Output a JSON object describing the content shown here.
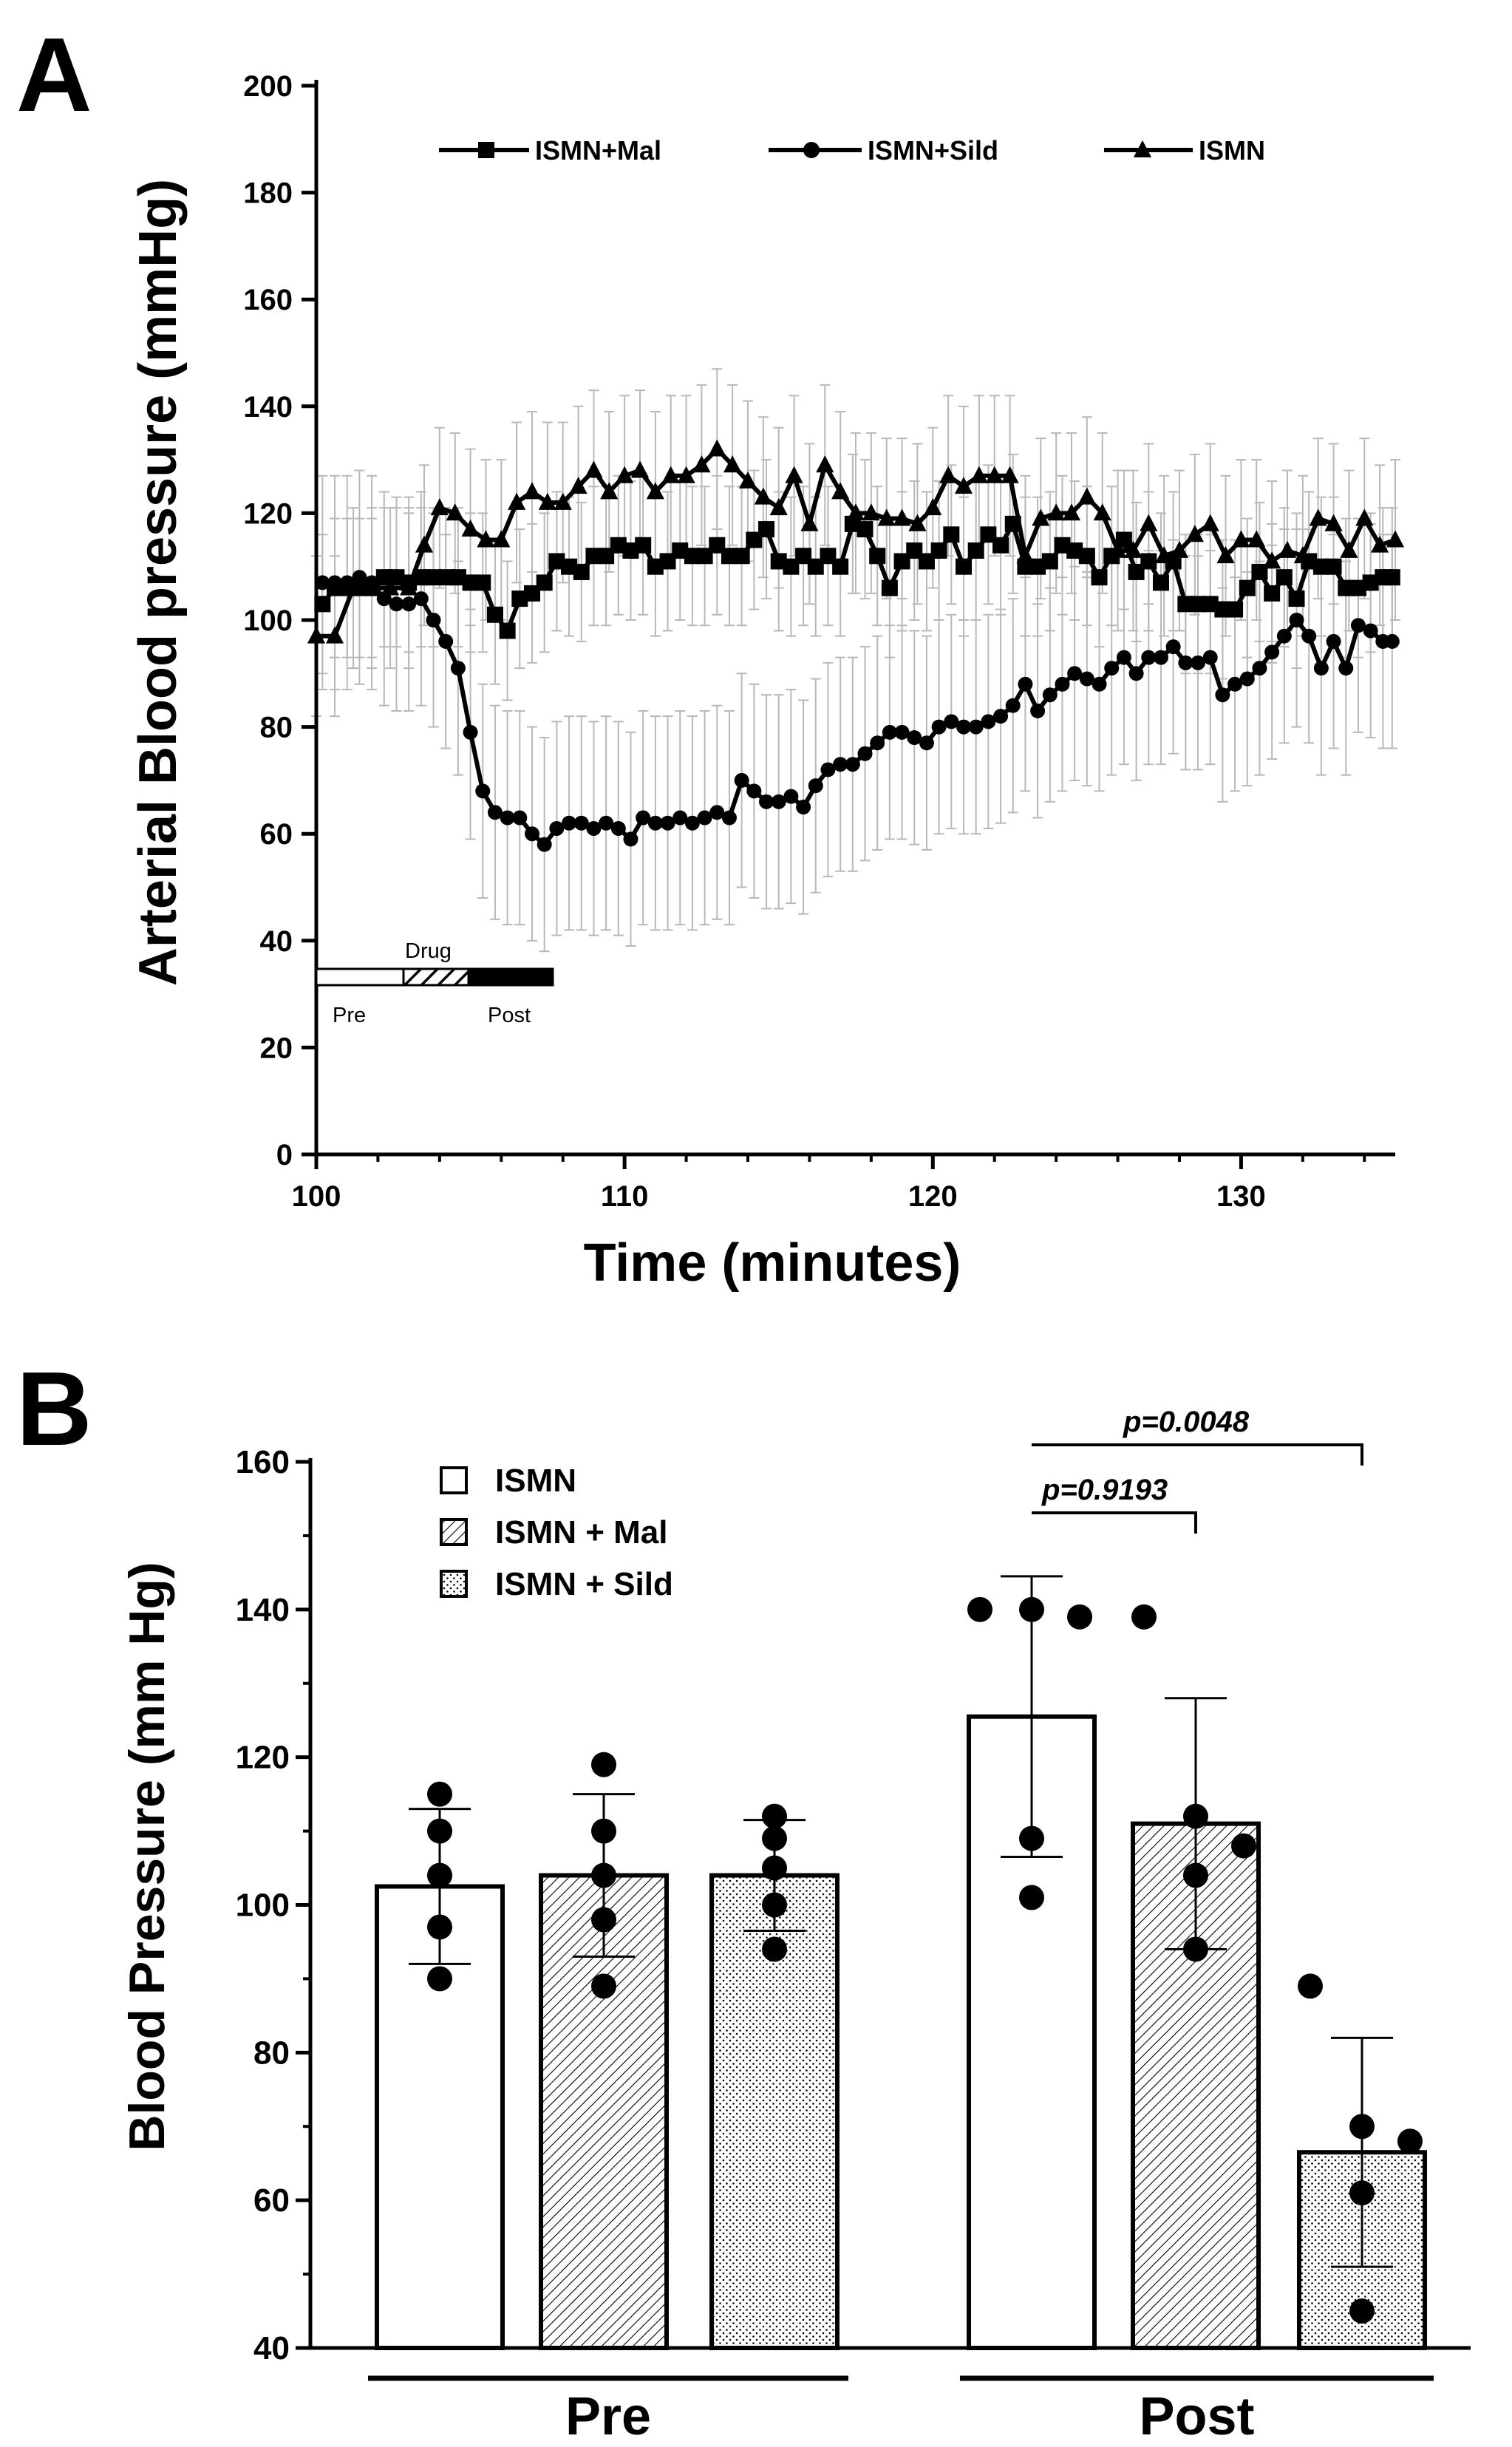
{
  "chart_data": [
    {
      "panel": "A",
      "type": "line",
      "xlabel": "Time (minutes)",
      "ylabel": "Arterial Blood pressure (mmHg)",
      "xlim": [
        100,
        135
      ],
      "ylim": [
        0,
        200
      ],
      "xticks": [
        100,
        110,
        120,
        130
      ],
      "yticks": [
        0,
        20,
        40,
        60,
        80,
        100,
        120,
        140,
        160,
        180,
        200
      ],
      "legend_position": "top",
      "inset": {
        "pre_label": "Pre",
        "drug_label": "Drug",
        "post_label": "Post"
      },
      "series": [
        {
          "name": "ISMN+Mal",
          "marker": "square",
          "x": [
            100.2,
            100.6,
            101,
            101.4,
            101.8,
            102.2,
            102.6,
            103,
            103.4,
            103.8,
            104.2,
            104.6,
            105,
            105.4,
            105.8,
            106.2,
            106.6,
            107,
            107.4,
            107.8,
            108.2,
            108.6,
            109,
            109.4,
            109.8,
            110.2,
            110.6,
            111,
            111.4,
            111.8,
            112.2,
            112.6,
            113,
            113.4,
            113.8,
            114.2,
            114.6,
            115,
            115.4,
            115.8,
            116.2,
            116.6,
            117,
            117.4,
            117.8,
            118.2,
            118.6,
            119,
            119.4,
            119.8,
            120.2,
            120.6,
            121,
            121.4,
            121.8,
            122.2,
            122.6,
            123,
            123.4,
            123.8,
            124.2,
            124.6,
            125,
            125.4,
            125.8,
            126.2,
            126.6,
            127,
            127.4,
            127.8,
            128.2,
            128.6,
            129,
            129.4,
            129.8,
            130.2,
            130.6,
            131,
            131.4,
            131.8,
            132.2,
            132.6,
            133,
            133.4,
            133.8,
            134.2,
            134.6,
            134.9
          ],
          "values": [
            103,
            106,
            106,
            106,
            106,
            108,
            108,
            107,
            108,
            108,
            108,
            108,
            107,
            107,
            101,
            98,
            104,
            105,
            107,
            111,
            110,
            109,
            112,
            112,
            114,
            113,
            114,
            110,
            111,
            113,
            112,
            112,
            114,
            112,
            112,
            115,
            117,
            111,
            110,
            112,
            110,
            112,
            110,
            118,
            117,
            112,
            106,
            111,
            113,
            111,
            113,
            116,
            110,
            113,
            116,
            114,
            118,
            110,
            110,
            111,
            114,
            113,
            112,
            108,
            112,
            115,
            109,
            111,
            107,
            111,
            103,
            103,
            103,
            102,
            102,
            106,
            109,
            105,
            108,
            104,
            111,
            110,
            110,
            106,
            106,
            107,
            108,
            108
          ],
          "err": 13
        },
        {
          "name": "ISMN+Sild",
          "marker": "circle",
          "x": [
            100.2,
            100.6,
            101,
            101.4,
            101.8,
            102.2,
            102.6,
            103,
            103.4,
            103.8,
            104.2,
            104.6,
            105,
            105.4,
            105.8,
            106.2,
            106.6,
            107,
            107.4,
            107.8,
            108.2,
            108.6,
            109,
            109.4,
            109.8,
            110.2,
            110.6,
            111,
            111.4,
            111.8,
            112.2,
            112.6,
            113,
            113.4,
            113.8,
            114.2,
            114.6,
            115,
            115.4,
            115.8,
            116.2,
            116.6,
            117,
            117.4,
            117.8,
            118.2,
            118.6,
            119,
            119.4,
            119.8,
            120.2,
            120.6,
            121,
            121.4,
            121.8,
            122.2,
            122.6,
            123,
            123.4,
            123.8,
            124.2,
            124.6,
            125,
            125.4,
            125.8,
            126.2,
            126.6,
            127,
            127.4,
            127.8,
            128.2,
            128.6,
            129,
            129.4,
            129.8,
            130.2,
            130.6,
            131,
            131.4,
            131.8,
            132.2,
            132.6,
            133,
            133.4,
            133.8,
            134.2,
            134.6,
            134.9
          ],
          "values": [
            107,
            107,
            107,
            108,
            107,
            104,
            103,
            103,
            104,
            100,
            96,
            91,
            79,
            68,
            64,
            63,
            63,
            60,
            58,
            61,
            62,
            62,
            61,
            62,
            61,
            59,
            63,
            62,
            62,
            63,
            62,
            63,
            64,
            63,
            70,
            68,
            66,
            66,
            67,
            65,
            69,
            72,
            73,
            73,
            75,
            77,
            79,
            79,
            78,
            77,
            80,
            81,
            80,
            80,
            81,
            82,
            84,
            88,
            83,
            86,
            88,
            90,
            89,
            88,
            91,
            93,
            90,
            93,
            93,
            95,
            92,
            92,
            93,
            86,
            88,
            89,
            91,
            94,
            97,
            100,
            97,
            91,
            96,
            91,
            99,
            98,
            96,
            96
          ],
          "err": 20
        },
        {
          "name": "ISMN",
          "marker": "triangle",
          "x": [
            100,
            100.6,
            101.2,
            101.8,
            102.4,
            103,
            103.5,
            104,
            104.5,
            105,
            105.5,
            106,
            106.5,
            107,
            107.5,
            108,
            108.5,
            109,
            109.5,
            110,
            110.5,
            111,
            111.5,
            112,
            112.5,
            113,
            113.5,
            114,
            114.5,
            115,
            115.5,
            116,
            116.5,
            117,
            117.5,
            118,
            118.5,
            119,
            119.5,
            120,
            120.5,
            121,
            121.5,
            122,
            122.5,
            123,
            123.5,
            124,
            124.5,
            125,
            125.5,
            126,
            126.5,
            127,
            127.5,
            128,
            128.5,
            129,
            129.5,
            130,
            130.5,
            131,
            131.5,
            132,
            132.5,
            133,
            133.5,
            134,
            134.5,
            135
          ],
          "values": [
            97,
            97,
            106,
            106,
            106,
            106,
            114,
            121,
            120,
            117,
            115,
            115,
            122,
            124,
            122,
            122,
            125,
            128,
            124,
            127,
            128,
            124,
            127,
            127,
            129,
            132,
            129,
            126,
            123,
            121,
            127,
            118,
            129,
            124,
            120,
            120,
            119,
            119,
            118,
            121,
            127,
            125,
            127,
            127,
            127,
            112,
            119,
            120,
            120,
            123,
            120,
            113,
            113,
            118,
            112,
            113,
            116,
            118,
            112,
            115,
            115,
            111,
            113,
            112,
            119,
            118,
            113,
            119,
            114,
            115
          ],
          "err": 15
        }
      ]
    },
    {
      "panel": "B",
      "type": "bar",
      "ylabel": "Blood Pressure (mm Hg)",
      "ylim": [
        40,
        160
      ],
      "yticks": [
        40,
        60,
        80,
        100,
        120,
        140,
        160
      ],
      "groups": [
        "Pre",
        "Post"
      ],
      "legend_position": "top-left",
      "series": [
        {
          "name": "ISMN",
          "pattern": "open"
        },
        {
          "name": "ISMN + Mal",
          "pattern": "hatched"
        },
        {
          "name": "ISMN + Sild",
          "pattern": "dotted"
        }
      ],
      "bars": [
        {
          "group": "Pre",
          "series": "ISMN",
          "mean": 102.5,
          "sd": 10.5,
          "points": [
            115,
            110,
            104,
            97,
            90
          ]
        },
        {
          "group": "Pre",
          "series": "ISMN + Mal",
          "mean": 104,
          "sd": 11,
          "points": [
            119,
            110,
            104,
            98,
            89
          ]
        },
        {
          "group": "Pre",
          "series": "ISMN + Sild",
          "mean": 104,
          "sd": 7.5,
          "points": [
            112,
            109,
            105,
            100,
            94
          ]
        },
        {
          "group": "Post",
          "series": "ISMN",
          "mean": 125.5,
          "sd": 19,
          "points": [
            140,
            140,
            139,
            109,
            101
          ]
        },
        {
          "group": "Post",
          "series": "ISMN + Mal",
          "mean": 111,
          "sd": 17,
          "points": [
            139,
            112,
            108,
            104,
            94
          ]
        },
        {
          "group": "Post",
          "series": "ISMN + Sild",
          "mean": 66.5,
          "sd": 15.5,
          "points": [
            89,
            70,
            68,
            61,
            45
          ]
        }
      ],
      "comparisons": [
        {
          "label": "p=0.9193",
          "from": "Post ISMN",
          "to": "Post ISMN + Mal"
        },
        {
          "label": "p=0.0048",
          "from": "Post ISMN",
          "to": "Post ISMN + Sild"
        }
      ]
    }
  ],
  "panel_labels": {
    "a": "A",
    "b": "B"
  }
}
